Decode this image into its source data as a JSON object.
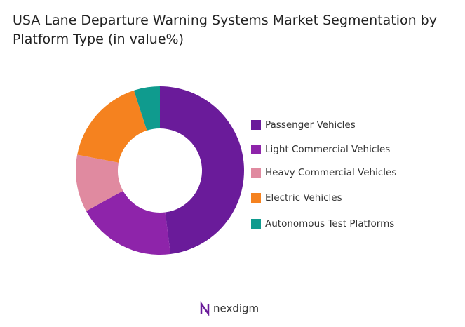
{
  "chart_data": {
    "type": "donut",
    "title": "USA Lane Departure Warning Systems Market Segmentation by Platform Type (in value%)",
    "categories": [
      "Passenger Vehicles",
      "Light Commercial Vehicles",
      "Heavy Commercial Vehicles",
      "Electric Vehicles",
      "Autonomous Test Platforms"
    ],
    "values": [
      48,
      19,
      11,
      17,
      5
    ],
    "colors": [
      "#6a1b9a",
      "#8e24aa",
      "#e08aa0",
      "#f5821f",
      "#0f9b8e"
    ],
    "legend": "right"
  },
  "brand": "nexdigm"
}
